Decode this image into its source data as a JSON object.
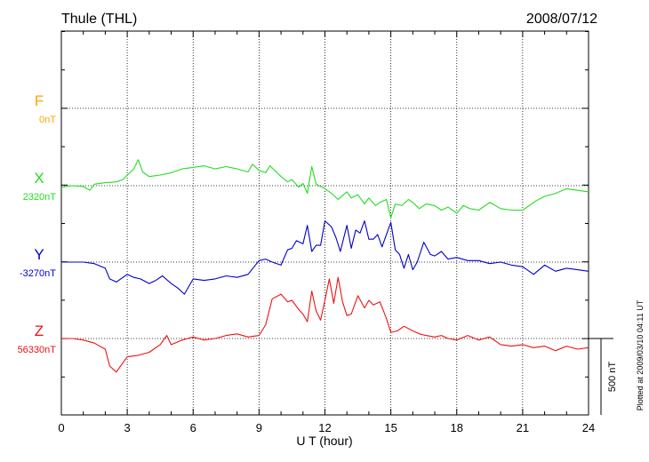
{
  "header": {
    "station": "Thule (THL)",
    "date": "2008/07/12"
  },
  "plotted_note": "Plotted at 2009/03/10 04:11 UT",
  "scale_bar_label": "500 nT",
  "chart_data": {
    "type": "line",
    "title": "Thule (THL)",
    "subtitle": "2008/07/12",
    "xlabel": "U T (hour)",
    "ylabel": "",
    "xlim": [
      0,
      24
    ],
    "xticks": [
      "0",
      "3",
      "6",
      "9",
      "12",
      "15",
      "18",
      "21",
      "24"
    ],
    "grid": true,
    "legend": "left",
    "series": [
      {
        "name": "F",
        "baseline_label": "0nT",
        "color": "#ffa500",
        "x": [],
        "y": []
      },
      {
        "name": "X",
        "baseline_label": "2320nT",
        "color": "#22dd22",
        "x": [
          0,
          0.5,
          1,
          1.3,
          1.5,
          2,
          2.5,
          2.8,
          3,
          3.3,
          3.5,
          3.7,
          4,
          4.5,
          5,
          5.5,
          6,
          6.5,
          7,
          7.5,
          8,
          8.5,
          8.7,
          9,
          9.3,
          9.5,
          10,
          10.3,
          10.5,
          10.8,
          11,
          11.2,
          11.4,
          11.6,
          12,
          12.3,
          12.6,
          13,
          13.2,
          13.5,
          13.8,
          14,
          14.3,
          14.5,
          14.8,
          15,
          15.2,
          15.5,
          15.8,
          16,
          16.3,
          16.6,
          17,
          17.3,
          17.6,
          18,
          18.3,
          18.6,
          19,
          19.5,
          20,
          20.5,
          21,
          21.3,
          21.6,
          22,
          22.5,
          23,
          23.5,
          24
        ],
        "y": [
          -10,
          0,
          -5,
          -30,
          10,
          20,
          25,
          40,
          70,
          110,
          170,
          90,
          60,
          70,
          85,
          110,
          120,
          130,
          110,
          125,
          110,
          90,
          140,
          100,
          85,
          130,
          60,
          25,
          40,
          -10,
          15,
          -50,
          125,
          10,
          -20,
          -50,
          -90,
          -40,
          -80,
          -60,
          -120,
          -80,
          -130,
          -110,
          -90,
          -210,
          -120,
          -130,
          -90,
          -110,
          -150,
          -120,
          -130,
          -160,
          -140,
          -180,
          -130,
          -150,
          -160,
          -110,
          -150,
          -160,
          -160,
          -130,
          -100,
          -70,
          -50,
          -20,
          -30,
          -40
        ]
      },
      {
        "name": "Y",
        "baseline_label": "-3270nT",
        "color": "#0000cc",
        "x": [
          0,
          0.5,
          1,
          1.5,
          2,
          2.2,
          2.5,
          3,
          3.3,
          3.6,
          4,
          4.3,
          4.6,
          5,
          5.3,
          5.6,
          6,
          6.5,
          7,
          7.5,
          8,
          8.5,
          9,
          9.3,
          9.6,
          10,
          10.3,
          10.5,
          10.7,
          11,
          11.2,
          11.4,
          11.6,
          11.8,
          12,
          12.3,
          12.5,
          12.7,
          13,
          13.2,
          13.4,
          13.6,
          13.8,
          14,
          14.2,
          14.4,
          14.6,
          15,
          15.2,
          15.4,
          15.6,
          15.8,
          16,
          16.2,
          16.5,
          16.8,
          17,
          17.3,
          17.6,
          18,
          18.5,
          19,
          19.5,
          20,
          20.5,
          21,
          21.5,
          22,
          22.5,
          23,
          23.5,
          24
        ],
        "y": [
          0,
          0,
          0,
          -10,
          -40,
          -110,
          -130,
          -80,
          -100,
          -110,
          -140,
          -120,
          -90,
          -140,
          -170,
          -210,
          -110,
          -120,
          -110,
          -90,
          -100,
          -80,
          10,
          20,
          0,
          -20,
          80,
          90,
          140,
          120,
          240,
          70,
          110,
          110,
          270,
          230,
          160,
          70,
          240,
          90,
          210,
          190,
          270,
          150,
          150,
          180,
          100,
          260,
          80,
          50,
          -40,
          50,
          -50,
          0,
          130,
          50,
          40,
          70,
          20,
          30,
          10,
          10,
          -10,
          0,
          -20,
          -30,
          -80,
          -20,
          -60,
          -40,
          -50,
          -60
        ]
      },
      {
        "name": "Z",
        "baseline_label": "56330nT",
        "color": "#ee1111",
        "x": [
          0,
          0.5,
          1,
          1.5,
          2,
          2.2,
          2.5,
          3,
          3.5,
          4,
          4.5,
          4.8,
          5,
          5.5,
          6,
          6.5,
          7,
          7.5,
          8,
          8.5,
          9,
          9.3,
          9.6,
          10,
          10.3,
          10.5,
          10.8,
          11,
          11.2,
          11.4,
          11.6,
          11.8,
          12,
          12.2,
          12.4,
          12.6,
          12.8,
          13,
          13.2,
          13.5,
          13.8,
          14,
          14.2,
          14.5,
          14.8,
          15,
          15.3,
          15.6,
          16,
          16.3,
          16.6,
          17,
          17.3,
          17.6,
          18,
          18.5,
          19,
          19.5,
          20,
          20.5,
          21,
          21.5,
          22,
          22.5,
          23,
          23.5,
          24
        ],
        "y": [
          0,
          0,
          -10,
          -30,
          -70,
          -180,
          -220,
          -120,
          -110,
          -90,
          -40,
          20,
          -40,
          -10,
          10,
          -10,
          0,
          20,
          30,
          10,
          20,
          90,
          260,
          290,
          240,
          250,
          190,
          160,
          110,
          310,
          180,
          120,
          250,
          390,
          230,
          400,
          240,
          150,
          160,
          280,
          200,
          250,
          220,
          240,
          130,
          40,
          50,
          80,
          50,
          30,
          20,
          10,
          20,
          0,
          -10,
          20,
          -10,
          10,
          -40,
          -50,
          -40,
          -60,
          -50,
          -80,
          -50,
          -70,
          -60
        ]
      }
    ],
    "scale_bar_nT": 500
  }
}
